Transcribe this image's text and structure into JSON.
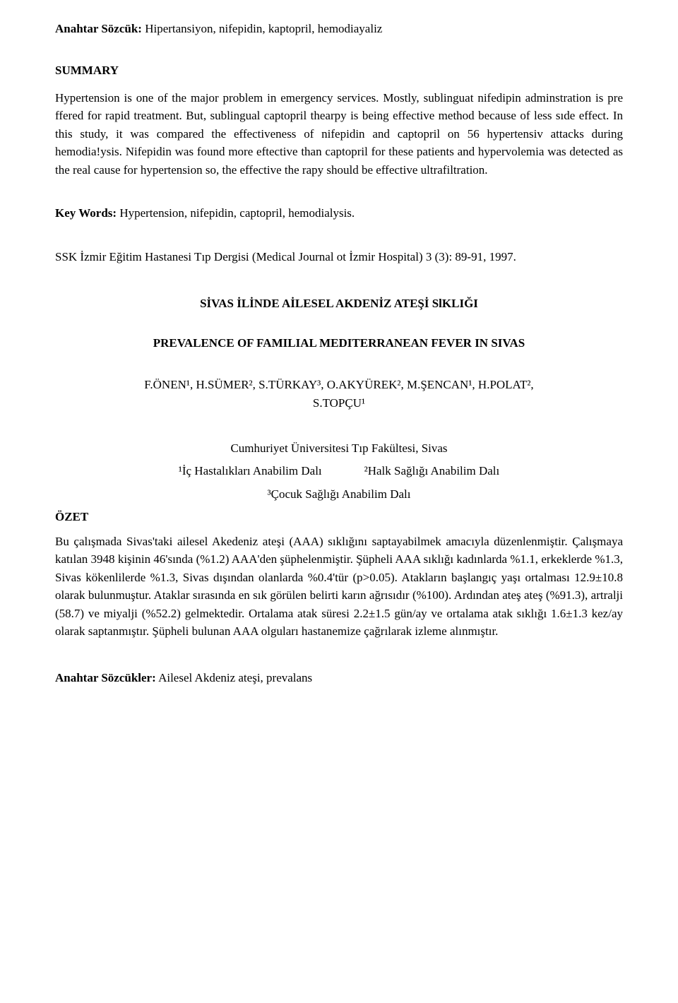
{
  "anahtar": {
    "label": "Anahtar Sözcük:",
    "text": " Hipertansiyon, nifepidin, kaptopril, hemodiayaliz"
  },
  "summary": {
    "heading": "SUMMARY",
    "body": "Hypertension is one of the major problem in emergency services. Mostly, sublinguat nifedipin adminstration is pre ffered for rapid treatment. But, sublingual captopril thearpy is being effective method because of less sıde effect. In this study, it was compared the effectiveness of nifepidin and captopril on 56 hypertensiv attacks during hemodia!ysis. Nifepidin was found more eftective than captopril for these patients and hypervolemia was detected as the real cause for hypertension so, the effective the rapy should be effective ultrafiltration."
  },
  "keywords_en": {
    "label": "Key Words:",
    "text": " Hypertension, nifepidin, captopril, hemodialysis."
  },
  "citation": "SSK İzmir Eğitim Hastanesi Tıp Dergisi (Medical Journal ot İzmir Hospital) 3 (3): 89-91, 1997.",
  "article": {
    "title": "SİVAS İLİNDE AİLESEL AKDENİZ ATEŞİ SlKLIĞI",
    "subtitle": "PREVALENCE OF FAMILIAL MEDITERRANEAN FEVER IN SIVAS",
    "authors_line1": "F.ÖNEN¹, H.SÜMER², S.TÜRKAY³, O.AKYÜREK², M.ŞENCAN¹, H.POLAT²,",
    "authors_line2": "S.TOPÇU¹",
    "affiliation_main": "Cumhuriyet Üniversitesi Tıp Fakültesi, Sivas",
    "dept1": "¹İç Hastalıkları Anabilim Dalı",
    "dept2": "²Halk Sağlığı Anabilim Dalı",
    "dept3": "³Çocuk Sağlığı Anabilim Dalı"
  },
  "ozet": {
    "heading": "ÖZET",
    "body": "Bu çalışmada Sivas'taki ailesel Akedeniz ateşi (AAA) sıklığını saptayabilmek amacıyla düzenlenmiştir. Çalışmaya katılan 3948 kişinin 46'sında (%1.2) AAA'den şüphelenmiştir. Şüpheli AAA sıklığı kadınlarda %1.1, erkeklerde %1.3, Sivas kökenlilerde %1.3, Sivas dışından olanlarda %0.4'tür (p>0.05). Atakların başlangıç yaşı ortalması 12.9±10.8 olarak bulunmuştur. Ataklar sırasında en sık görülen belirti karın ağrısıdır (%100). Ardından ateş ateş (%91.3), artralji (58.7) ve miyalji (%52.2) gelmektedir. Ortalama atak süresi 2.2±1.5 gün/ay ve ortalama atak sıklığı 1.6±1.3 kez/ay olarak saptanmıştır. Şüpheli bulunan AAA olguları hastanemize çağrılarak izleme alınmıştır."
  },
  "anahtar2": {
    "label": "Anahtar Sözcükler:",
    "text": " Ailesel Akdeniz ateşi, prevalans"
  }
}
